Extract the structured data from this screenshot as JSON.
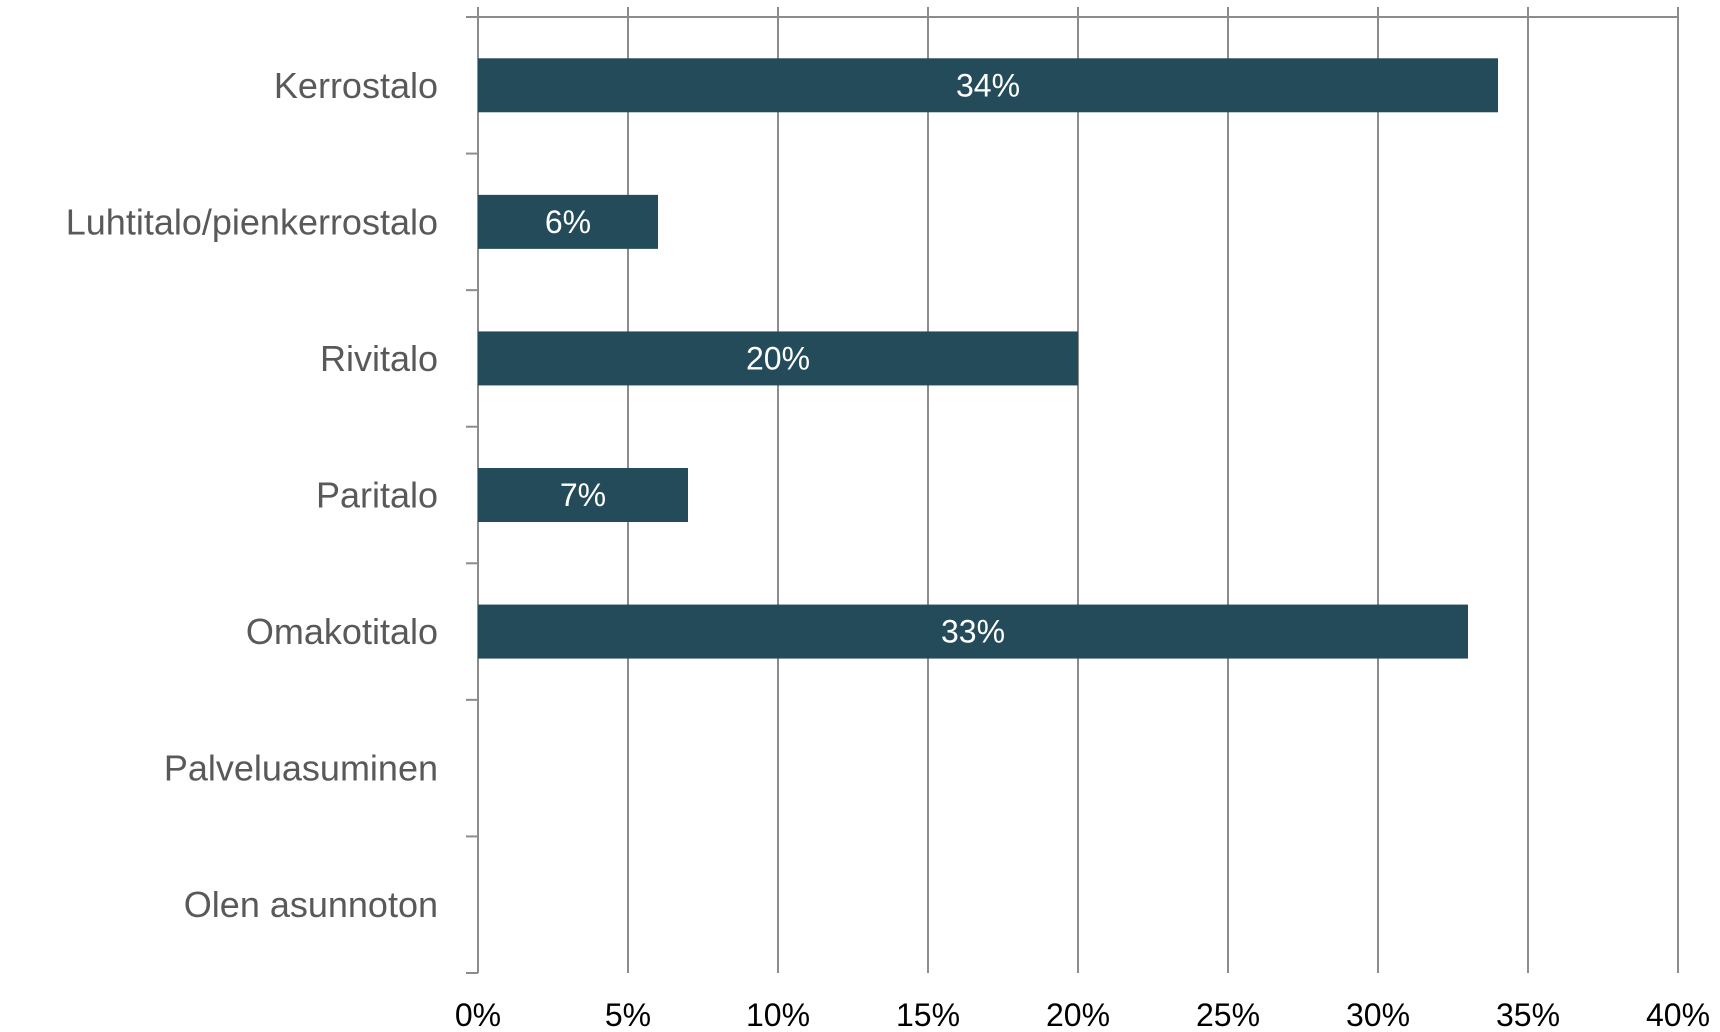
{
  "chart_data": {
    "type": "bar",
    "orientation": "horizontal",
    "categories": [
      "Kerrostalo",
      "Luhtitalo/pienkerrostalo",
      "Rivitalo",
      "Paritalo",
      "Omakotitalo",
      "Palveluasuminen",
      "Olen asunnoton"
    ],
    "values": [
      34,
      6,
      20,
      7,
      33,
      0,
      0
    ],
    "data_labels": [
      "34%",
      "6%",
      "20%",
      "7%",
      "33%",
      "",
      ""
    ],
    "xlim": [
      0,
      40
    ],
    "x_ticks": [
      0,
      5,
      10,
      15,
      20,
      25,
      30,
      35,
      40
    ],
    "x_tick_labels": [
      "0%",
      "5%",
      "10%",
      "15%",
      "20%",
      "25%",
      "30%",
      "35%",
      "40%"
    ],
    "grid": "vertical",
    "legend": "none",
    "title": "",
    "xlabel": "",
    "ylabel": ""
  },
  "colors": {
    "bar": "#234b5a",
    "grid": "#8c8c8c",
    "category_text": "#595959",
    "tick_text": "#000000",
    "data_label_text": "#ffffff"
  }
}
